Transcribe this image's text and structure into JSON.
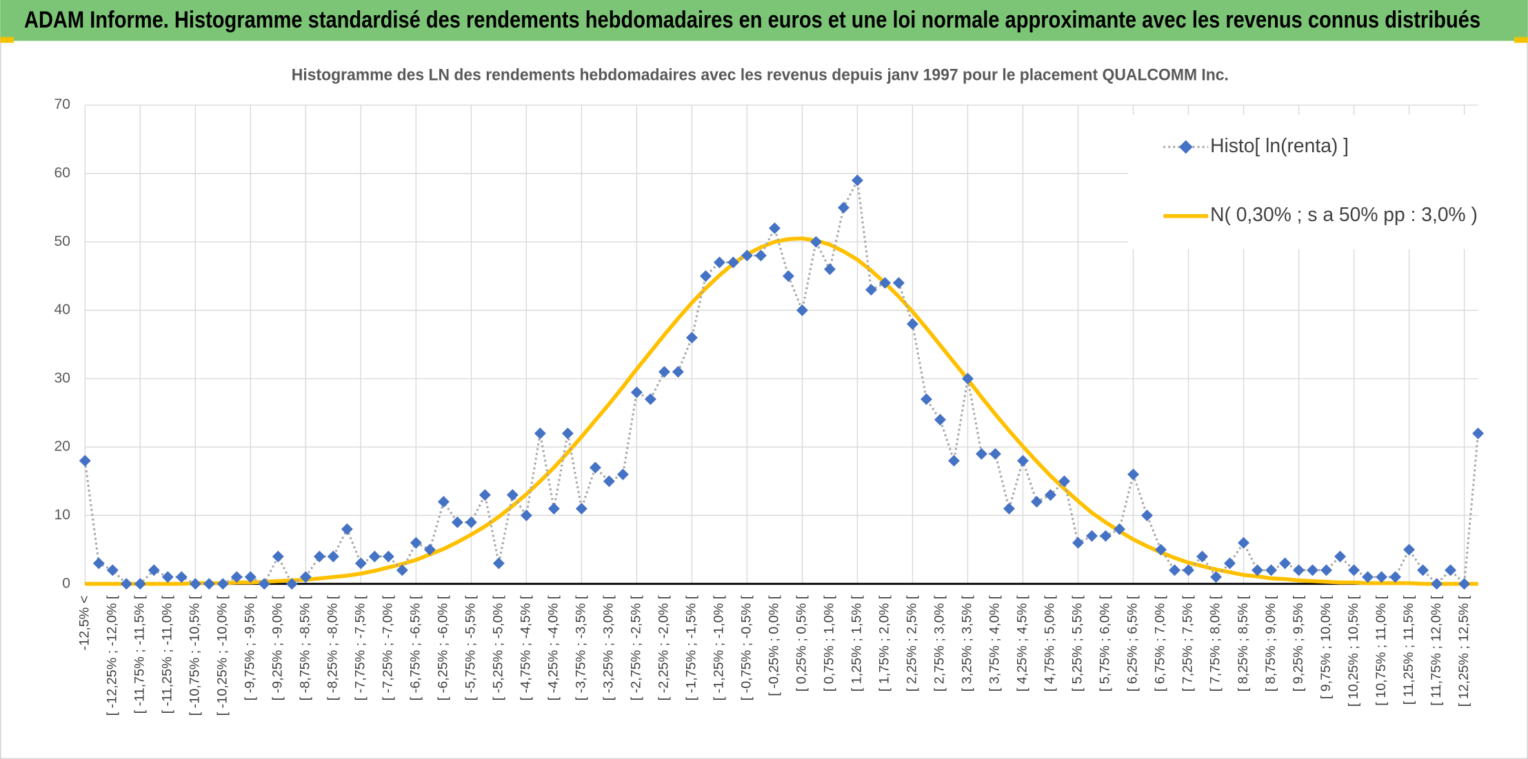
{
  "header": {
    "title": "ADAM Informe. Histogramme standardisé des rendements hebdomadaires en euros et une loi normale approximante avec les revenus connus distribués"
  },
  "chart_data": {
    "type": "line",
    "title": "Histogramme des LN des rendements hebdomadaires avec les revenus depuis janv 1997 pour le placement QUALCOMM Inc.",
    "categories": [
      "-12,5% <",
      null,
      "[ -12,25% ; -12,0% [",
      null,
      "[ -11,75% ; -11,5% [",
      null,
      "[ -11,25% ; -11,0% [",
      null,
      "[ -10,75% ; -10,5% [",
      null,
      "[ -10,25% ; -10,0% [",
      null,
      "[ -9,75% ; -9,5% [",
      null,
      "[ -9,25% ; -9,0% [",
      null,
      "[ -8,75% ; -8,5% [",
      null,
      "[ -8,25% ; -8,0% [",
      null,
      "[ -7,75% ; -7,5% [",
      null,
      "[ -7,25% ; -7,0% [",
      null,
      "[ -6,75% ; -6,5% [",
      null,
      "[ -6,25% ; -6,0% [",
      null,
      "[ -5,75% ; -5,5% [",
      null,
      "[ -5,25% ; -5,0% [",
      null,
      "[ -4,75% ; -4,5% [",
      null,
      "[ -4,25% ; -4,0% [",
      null,
      "[ -3,75% ; -3,5% [",
      null,
      "[ -3,25% ; -3,0% [",
      null,
      "[ -2,75% ; -2,5% [",
      null,
      "[ -2,25% ; -2,0% [",
      null,
      "[ -1,75% ; -1,5% [",
      null,
      "[ -1,25% ; -1,0% [",
      null,
      "[ -0,75% ; -0,5% [",
      null,
      "[ -0,25% ; 0,0% [",
      null,
      "[ 0,25% ; 0,5% [",
      null,
      "[ 0,75% ; 1,0% [",
      null,
      "[ 1,25% ; 1,5% [",
      null,
      "[ 1,75% ; 2,0% [",
      null,
      "[ 2,25% ; 2,5% [",
      null,
      "[ 2,75% ; 3,0% [",
      null,
      "[ 3,25% ; 3,5% [",
      null,
      "[ 3,75% ; 4,0% [",
      null,
      "[ 4,25% ; 4,5% [",
      null,
      "[ 4,75% ; 5,0% [",
      null,
      "[ 5,25% ; 5,5% [",
      null,
      "[ 5,75% ; 6,0% [",
      null,
      "[ 6,25% ; 6,5% [",
      null,
      "[ 6,75% ; 7,0% [",
      null,
      "[ 7,25% ; 7,5% [",
      null,
      "[ 7,75% ; 8,0% [",
      null,
      "[ 8,25% ; 8,5% [",
      null,
      "[ 8,75% ; 9,0% [",
      null,
      "[ 9,25% ; 9,5% [",
      null,
      "[ 9,75% ; 10,0% [",
      null,
      "[ 10,25% ; 10,5% [",
      null,
      "[ 10,75% ; 11,0% [",
      null,
      "[ 11,25% ; 11,5% [",
      null,
      "[ 11,75% ; 12,0% [",
      null,
      "[ 12,25% ; 12,5% [",
      null
    ],
    "series": [
      {
        "name": "Histo[ ln(renta) ]",
        "color": "#4472c4",
        "line_color": "#a6a6a6",
        "line_style": "dotted",
        "marker": "diamond",
        "values": [
          18,
          3,
          2,
          0,
          0,
          2,
          1,
          1,
          0,
          0,
          0,
          1,
          1,
          0,
          4,
          0,
          1,
          4,
          4,
          8,
          3,
          4,
          4,
          2,
          6,
          5,
          12,
          9,
          9,
          13,
          3,
          13,
          10,
          22,
          11,
          22,
          11,
          17,
          15,
          16,
          28,
          27,
          31,
          31,
          36,
          45,
          47,
          47,
          48,
          48,
          52,
          45,
          40,
          50,
          46,
          55,
          59,
          43,
          44,
          44,
          38,
          27,
          24,
          18,
          30,
          19,
          19,
          11,
          18,
          12,
          13,
          15,
          6,
          7,
          7,
          8,
          16,
          10,
          5,
          2,
          2,
          4,
          1,
          3,
          6,
          2,
          2,
          3,
          2,
          2,
          2,
          4,
          2,
          1,
          1,
          1,
          5,
          2,
          0,
          2,
          0,
          22
        ]
      },
      {
        "name": "N( 0,30% ; s a 50% pp : 3,0% )",
        "color": "#ffc000",
        "line_style": "solid",
        "marker": "none",
        "values": [
          0,
          0,
          0,
          0,
          0,
          0,
          0,
          0,
          0.1,
          0.1,
          0.1,
          0.2,
          0.2,
          0.3,
          0.4,
          0.5,
          0.6,
          0.8,
          1.0,
          1.2,
          1.5,
          1.9,
          2.4,
          2.9,
          3.5,
          4.3,
          5.1,
          6.1,
          7.2,
          8.4,
          9.8,
          11.4,
          13.1,
          15.0,
          17.0,
          19.2,
          21.5,
          23.9,
          26.3,
          28.8,
          31.4,
          33.9,
          36.4,
          38.8,
          41.1,
          43.2,
          45.1,
          46.8,
          48.2,
          49.2,
          50.0,
          50.4,
          50.5,
          50.2,
          49.6,
          48.6,
          47.4,
          45.8,
          44.0,
          42.0,
          39.8,
          37.4,
          34.9,
          32.4,
          29.9,
          27.3,
          24.8,
          22.4,
          20.1,
          17.9,
          15.8,
          13.9,
          12.1,
          10.4,
          9.0,
          7.7,
          6.5,
          5.5,
          4.6,
          3.8,
          3.1,
          2.6,
          2.1,
          1.7,
          1.3,
          1.1,
          0.8,
          0.7,
          0.5,
          0.4,
          0.3,
          0.2,
          0.2,
          0.1,
          0.1,
          0.1,
          0.1,
          0,
          0,
          0,
          0,
          0
        ]
      }
    ],
    "ylim": [
      0,
      70
    ],
    "yticks": [
      0,
      10,
      20,
      30,
      40,
      50,
      60,
      70
    ],
    "grid": true,
    "legend": "upper right"
  }
}
